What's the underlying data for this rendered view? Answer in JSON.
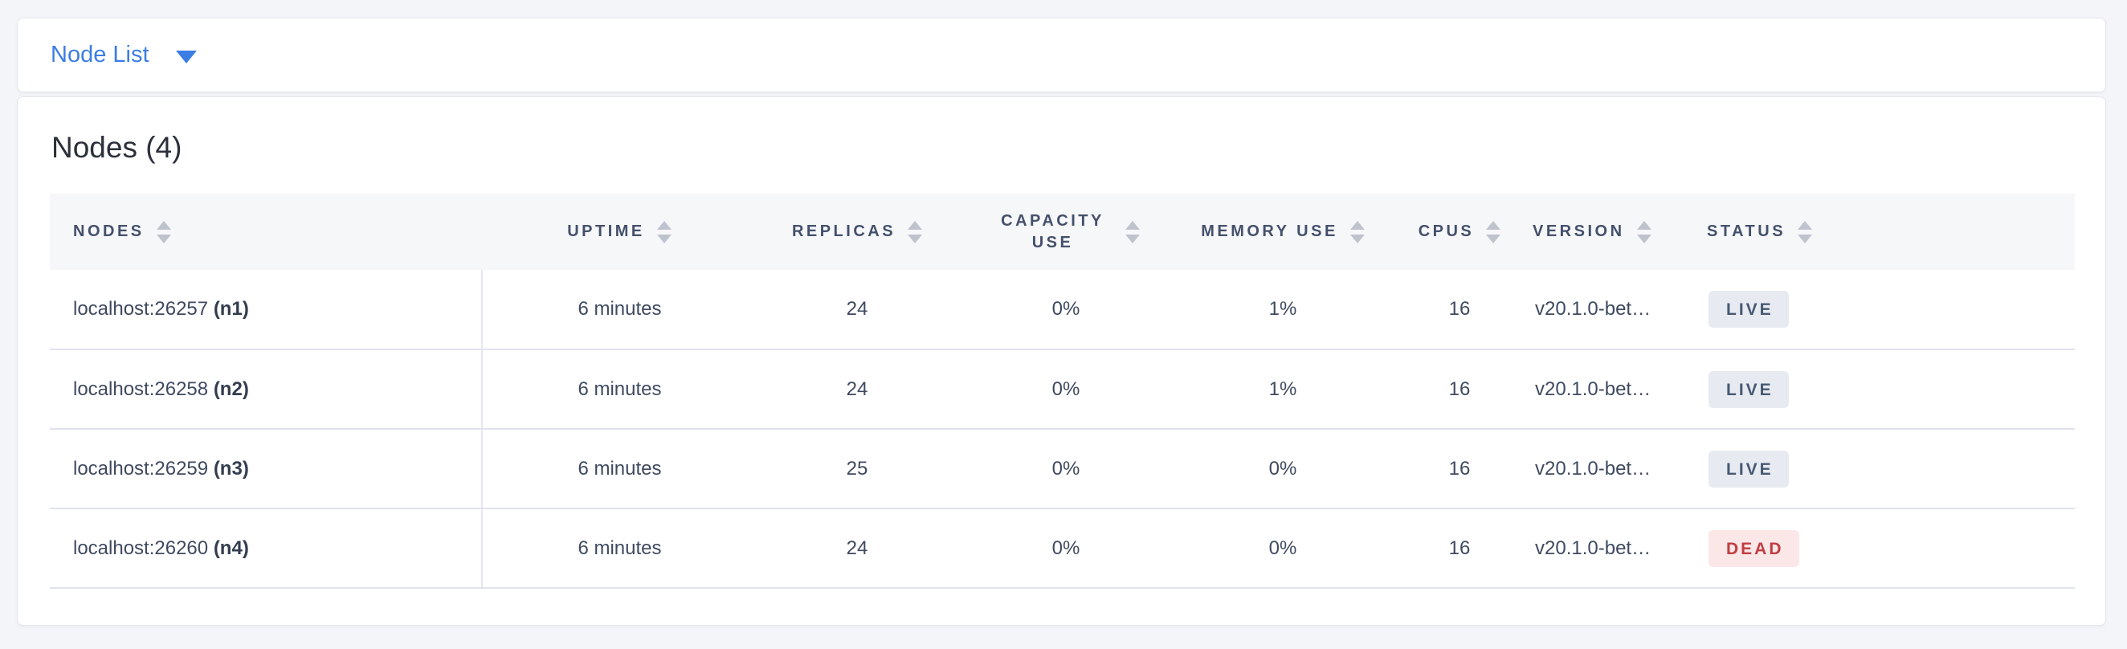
{
  "selector_bar": {
    "label": "Node List"
  },
  "nodes_section": {
    "title": "Nodes (4)",
    "table": {
      "columns": {
        "nodes": {
          "label": "NODES"
        },
        "uptime": {
          "label": "UPTIME"
        },
        "replicas": {
          "label": "REPLICAS"
        },
        "capacity": {
          "label": "CAPACITY USE"
        },
        "memory": {
          "label": "MEMORY USE"
        },
        "cpus": {
          "label": "CPUS"
        },
        "version": {
          "label": "VERSION"
        },
        "status": {
          "label": "STATUS"
        }
      },
      "rows": [
        {
          "address": "localhost:26257",
          "id": "(n1)",
          "uptime": "6 minutes",
          "replicas": "24",
          "capacity_use": "0%",
          "memory_use": "1%",
          "cpus": "16",
          "version": "v20.1.0-bet…",
          "status": "LIVE"
        },
        {
          "address": "localhost:26258",
          "id": "(n2)",
          "uptime": "6 minutes",
          "replicas": "24",
          "capacity_use": "0%",
          "memory_use": "1%",
          "cpus": "16",
          "version": "v20.1.0-bet…",
          "status": "LIVE"
        },
        {
          "address": "localhost:26259",
          "id": "(n3)",
          "uptime": "6 minutes",
          "replicas": "25",
          "capacity_use": "0%",
          "memory_use": "0%",
          "cpus": "16",
          "version": "v20.1.0-bet…",
          "status": "LIVE"
        },
        {
          "address": "localhost:26260",
          "id": "(n4)",
          "uptime": "6 minutes",
          "replicas": "24",
          "capacity_use": "0%",
          "memory_use": "0%",
          "cpus": "16",
          "version": "v20.1.0-bet…",
          "status": "DEAD"
        }
      ]
    }
  },
  "colors": {
    "accent_blue": "#3c7de3",
    "page_background": "#f4f5f9",
    "header_text": "#44506b",
    "row_text": "#3f4a5f",
    "live_badge_bg": "#e7eaf1",
    "live_badge_text": "#475872",
    "dead_badge_bg": "#fbe7e8",
    "dead_badge_text": "#c03d42"
  }
}
